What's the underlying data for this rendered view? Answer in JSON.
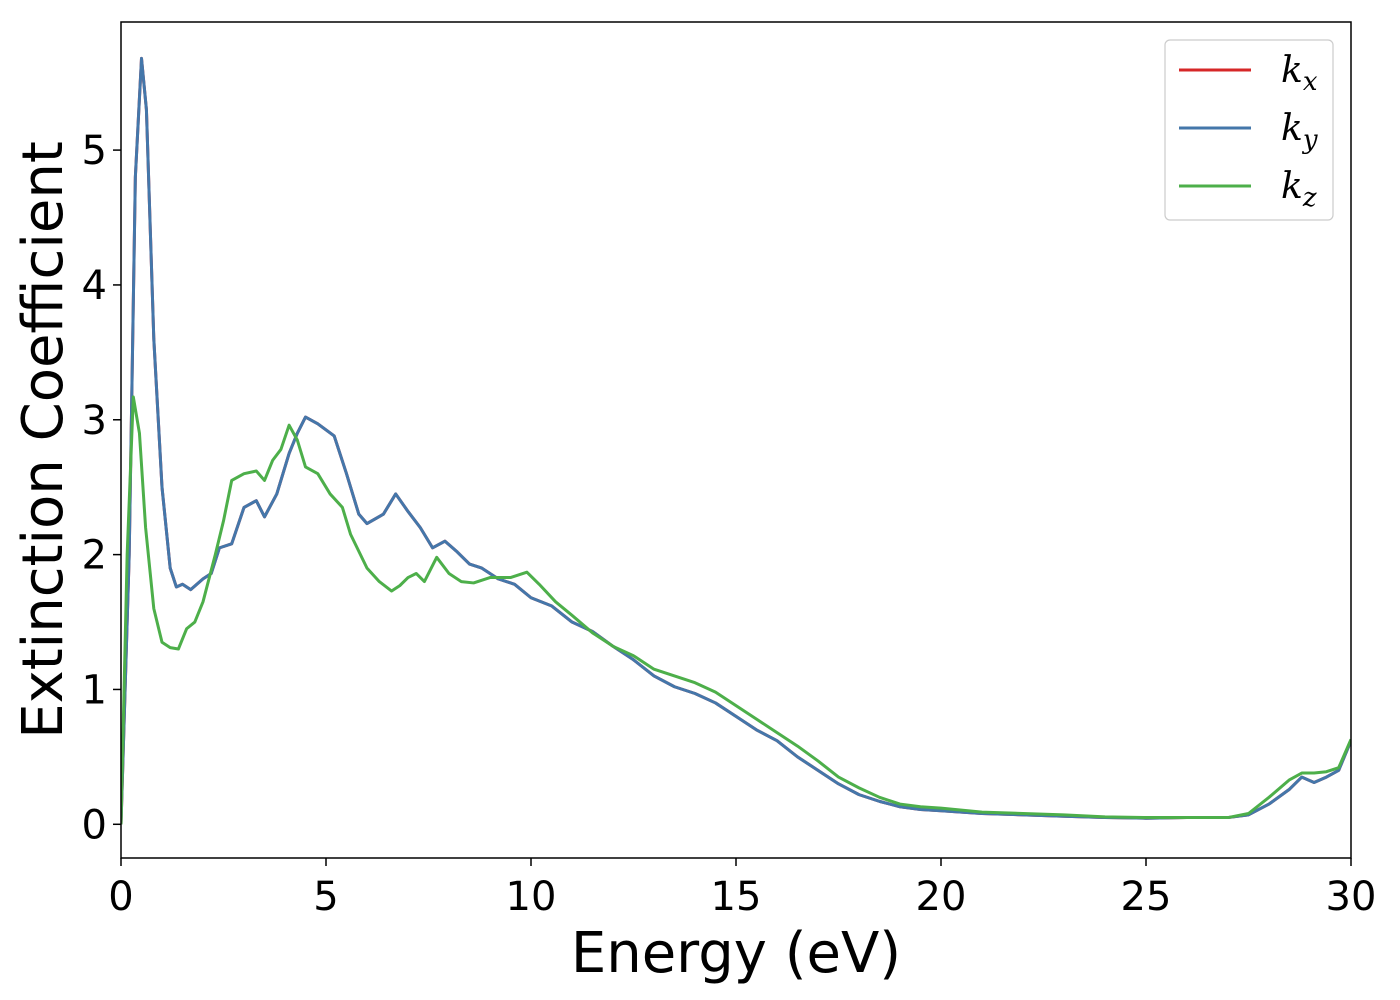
{
  "chart_data": {
    "type": "line",
    "title": "",
    "xlabel": "Energy (eV)",
    "ylabel": "Extinction Coefficient",
    "xlim": [
      0,
      30
    ],
    "ylim": [
      -0.25,
      5.95
    ],
    "xticks": [
      0,
      5,
      10,
      15,
      20,
      25,
      30
    ],
    "yticks": [
      0,
      1,
      2,
      3,
      4,
      5
    ],
    "grid": false,
    "legend_position": "top-right",
    "series": [
      {
        "name": "k_x",
        "label_base": "k",
        "label_sub": "x",
        "color": "#d62728",
        "points": [
          [
            0,
            0
          ],
          [
            0.2,
            2.0
          ],
          [
            0.35,
            4.8
          ],
          [
            0.5,
            5.68
          ],
          [
            0.62,
            5.3
          ],
          [
            0.8,
            3.6
          ],
          [
            1.0,
            2.5
          ],
          [
            1.2,
            1.9
          ],
          [
            1.35,
            1.76
          ],
          [
            1.5,
            1.78
          ],
          [
            1.7,
            1.74
          ],
          [
            2.0,
            1.82
          ],
          [
            2.2,
            1.86
          ],
          [
            2.4,
            2.05
          ],
          [
            2.7,
            2.08
          ],
          [
            3.0,
            2.35
          ],
          [
            3.3,
            2.4
          ],
          [
            3.5,
            2.28
          ],
          [
            3.8,
            2.45
          ],
          [
            4.1,
            2.75
          ],
          [
            4.3,
            2.9
          ],
          [
            4.5,
            3.02
          ],
          [
            4.8,
            2.97
          ],
          [
            5.2,
            2.88
          ],
          [
            5.5,
            2.6
          ],
          [
            5.8,
            2.3
          ],
          [
            6.0,
            2.23
          ],
          [
            6.4,
            2.3
          ],
          [
            6.7,
            2.45
          ],
          [
            7.0,
            2.32
          ],
          [
            7.3,
            2.2
          ],
          [
            7.6,
            2.05
          ],
          [
            7.9,
            2.1
          ],
          [
            8.2,
            2.02
          ],
          [
            8.5,
            1.93
          ],
          [
            8.8,
            1.9
          ],
          [
            9.2,
            1.82
          ],
          [
            9.6,
            1.78
          ],
          [
            10.0,
            1.68
          ],
          [
            10.5,
            1.62
          ],
          [
            11.0,
            1.5
          ],
          [
            11.5,
            1.43
          ],
          [
            12.0,
            1.32
          ],
          [
            12.5,
            1.22
          ],
          [
            13.0,
            1.1
          ],
          [
            13.5,
            1.02
          ],
          [
            14.0,
            0.97
          ],
          [
            14.5,
            0.9
          ],
          [
            15.0,
            0.8
          ],
          [
            15.5,
            0.7
          ],
          [
            16.0,
            0.62
          ],
          [
            16.5,
            0.5
          ],
          [
            17.0,
            0.4
          ],
          [
            17.5,
            0.3
          ],
          [
            18.0,
            0.22
          ],
          [
            18.5,
            0.17
          ],
          [
            19.0,
            0.13
          ],
          [
            19.5,
            0.11
          ],
          [
            20.0,
            0.1
          ],
          [
            21.0,
            0.08
          ],
          [
            22.0,
            0.07
          ],
          [
            23.0,
            0.06
          ],
          [
            24.0,
            0.05
          ],
          [
            25.0,
            0.045
          ],
          [
            26.0,
            0.05
          ],
          [
            27.0,
            0.05
          ],
          [
            27.5,
            0.07
          ],
          [
            28.0,
            0.15
          ],
          [
            28.5,
            0.26
          ],
          [
            28.8,
            0.35
          ],
          [
            29.1,
            0.31
          ],
          [
            29.4,
            0.35
          ],
          [
            29.7,
            0.4
          ],
          [
            30.0,
            0.62
          ]
        ]
      },
      {
        "name": "k_y",
        "label_base": "k",
        "label_sub": "y",
        "color": "#4477aa",
        "points": [
          [
            0,
            0
          ],
          [
            0.2,
            2.0
          ],
          [
            0.35,
            4.8
          ],
          [
            0.5,
            5.68
          ],
          [
            0.62,
            5.3
          ],
          [
            0.8,
            3.6
          ],
          [
            1.0,
            2.5
          ],
          [
            1.2,
            1.9
          ],
          [
            1.35,
            1.76
          ],
          [
            1.5,
            1.78
          ],
          [
            1.7,
            1.74
          ],
          [
            2.0,
            1.82
          ],
          [
            2.2,
            1.86
          ],
          [
            2.4,
            2.05
          ],
          [
            2.7,
            2.08
          ],
          [
            3.0,
            2.35
          ],
          [
            3.3,
            2.4
          ],
          [
            3.5,
            2.28
          ],
          [
            3.8,
            2.45
          ],
          [
            4.1,
            2.75
          ],
          [
            4.3,
            2.9
          ],
          [
            4.5,
            3.02
          ],
          [
            4.8,
            2.97
          ],
          [
            5.2,
            2.88
          ],
          [
            5.5,
            2.6
          ],
          [
            5.8,
            2.3
          ],
          [
            6.0,
            2.23
          ],
          [
            6.4,
            2.3
          ],
          [
            6.7,
            2.45
          ],
          [
            7.0,
            2.32
          ],
          [
            7.3,
            2.2
          ],
          [
            7.6,
            2.05
          ],
          [
            7.9,
            2.1
          ],
          [
            8.2,
            2.02
          ],
          [
            8.5,
            1.93
          ],
          [
            8.8,
            1.9
          ],
          [
            9.2,
            1.82
          ],
          [
            9.6,
            1.78
          ],
          [
            10.0,
            1.68
          ],
          [
            10.5,
            1.62
          ],
          [
            11.0,
            1.5
          ],
          [
            11.5,
            1.43
          ],
          [
            12.0,
            1.32
          ],
          [
            12.5,
            1.22
          ],
          [
            13.0,
            1.1
          ],
          [
            13.5,
            1.02
          ],
          [
            14.0,
            0.97
          ],
          [
            14.5,
            0.9
          ],
          [
            15.0,
            0.8
          ],
          [
            15.5,
            0.7
          ],
          [
            16.0,
            0.62
          ],
          [
            16.5,
            0.5
          ],
          [
            17.0,
            0.4
          ],
          [
            17.5,
            0.3
          ],
          [
            18.0,
            0.22
          ],
          [
            18.5,
            0.17
          ],
          [
            19.0,
            0.13
          ],
          [
            19.5,
            0.11
          ],
          [
            20.0,
            0.1
          ],
          [
            21.0,
            0.08
          ],
          [
            22.0,
            0.07
          ],
          [
            23.0,
            0.06
          ],
          [
            24.0,
            0.05
          ],
          [
            25.0,
            0.045
          ],
          [
            26.0,
            0.05
          ],
          [
            27.0,
            0.05
          ],
          [
            27.5,
            0.07
          ],
          [
            28.0,
            0.15
          ],
          [
            28.5,
            0.26
          ],
          [
            28.8,
            0.35
          ],
          [
            29.1,
            0.31
          ],
          [
            29.4,
            0.35
          ],
          [
            29.7,
            0.4
          ],
          [
            30.0,
            0.62
          ]
        ]
      },
      {
        "name": "k_z",
        "label_base": "k",
        "label_sub": "z",
        "color": "#4daf4a",
        "points": [
          [
            0,
            0
          ],
          [
            0.15,
            2.0
          ],
          [
            0.3,
            3.17
          ],
          [
            0.45,
            2.9
          ],
          [
            0.6,
            2.2
          ],
          [
            0.8,
            1.6
          ],
          [
            1.0,
            1.35
          ],
          [
            1.2,
            1.31
          ],
          [
            1.4,
            1.3
          ],
          [
            1.6,
            1.45
          ],
          [
            1.8,
            1.5
          ],
          [
            2.0,
            1.65
          ],
          [
            2.3,
            2.0
          ],
          [
            2.5,
            2.25
          ],
          [
            2.7,
            2.55
          ],
          [
            3.0,
            2.6
          ],
          [
            3.3,
            2.62
          ],
          [
            3.5,
            2.55
          ],
          [
            3.7,
            2.7
          ],
          [
            3.9,
            2.78
          ],
          [
            4.1,
            2.96
          ],
          [
            4.3,
            2.85
          ],
          [
            4.5,
            2.65
          ],
          [
            4.8,
            2.6
          ],
          [
            5.1,
            2.45
          ],
          [
            5.4,
            2.35
          ],
          [
            5.6,
            2.15
          ],
          [
            6.0,
            1.9
          ],
          [
            6.3,
            1.8
          ],
          [
            6.6,
            1.73
          ],
          [
            6.8,
            1.77
          ],
          [
            7.0,
            1.83
          ],
          [
            7.2,
            1.86
          ],
          [
            7.4,
            1.8
          ],
          [
            7.7,
            1.98
          ],
          [
            8.0,
            1.86
          ],
          [
            8.3,
            1.8
          ],
          [
            8.6,
            1.79
          ],
          [
            9.0,
            1.83
          ],
          [
            9.5,
            1.83
          ],
          [
            9.9,
            1.87
          ],
          [
            10.2,
            1.78
          ],
          [
            10.6,
            1.65
          ],
          [
            11.0,
            1.55
          ],
          [
            11.5,
            1.42
          ],
          [
            12.0,
            1.32
          ],
          [
            12.5,
            1.25
          ],
          [
            13.0,
            1.15
          ],
          [
            13.5,
            1.1
          ],
          [
            14.0,
            1.05
          ],
          [
            14.5,
            0.98
          ],
          [
            15.0,
            0.88
          ],
          [
            15.5,
            0.78
          ],
          [
            16.0,
            0.68
          ],
          [
            16.5,
            0.58
          ],
          [
            17.0,
            0.47
          ],
          [
            17.5,
            0.35
          ],
          [
            18.0,
            0.27
          ],
          [
            18.5,
            0.2
          ],
          [
            19.0,
            0.15
          ],
          [
            19.5,
            0.13
          ],
          [
            20.0,
            0.12
          ],
          [
            21.0,
            0.09
          ],
          [
            22.0,
            0.08
          ],
          [
            23.0,
            0.07
          ],
          [
            24.0,
            0.055
          ],
          [
            25.0,
            0.05
          ],
          [
            26.0,
            0.05
          ],
          [
            27.0,
            0.05
          ],
          [
            27.5,
            0.08
          ],
          [
            28.0,
            0.2
          ],
          [
            28.5,
            0.33
          ],
          [
            28.8,
            0.38
          ],
          [
            29.1,
            0.38
          ],
          [
            29.4,
            0.39
          ],
          [
            29.7,
            0.42
          ],
          [
            30.0,
            0.63
          ]
        ]
      }
    ]
  }
}
